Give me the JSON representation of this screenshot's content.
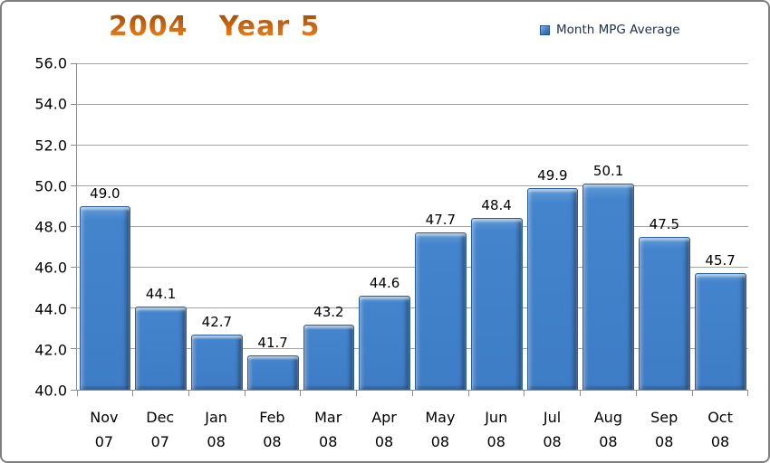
{
  "frame": {
    "border_color": "#7F7F7F",
    "background": "#FFFFFF"
  },
  "title": {
    "text": "2004   Year 5",
    "color": "#CE650C"
  },
  "legend": {
    "label": "Month MPG Average",
    "marker_color": "#3E7DC5"
  },
  "chart_data": {
    "type": "bar",
    "title": "2004   Year 5",
    "categories": [
      "Nov 07",
      "Dec 07",
      "Jan 08",
      "Feb 08",
      "Mar 08",
      "Apr 08",
      "May 08",
      "Jun 08",
      "Jul 08",
      "Aug 08",
      "Sep 08",
      "Oct 08"
    ],
    "series": [
      {
        "name": "Month MPG Average",
        "values": [
          49.0,
          44.1,
          42.7,
          41.7,
          43.2,
          44.6,
          47.7,
          48.4,
          49.9,
          50.1,
          47.5,
          45.7
        ]
      }
    ],
    "ylim": [
      40.0,
      56.0
    ],
    "ytick_step": 2.0,
    "ytick_labels": [
      "56.0",
      "54.0",
      "52.0",
      "50.0",
      "48.0",
      "46.0",
      "44.0",
      "42.0",
      "40.0"
    ],
    "grid": true,
    "legend_position": "top-right",
    "bar_color": "#3E7DC5",
    "value_label_decimals": 1
  }
}
